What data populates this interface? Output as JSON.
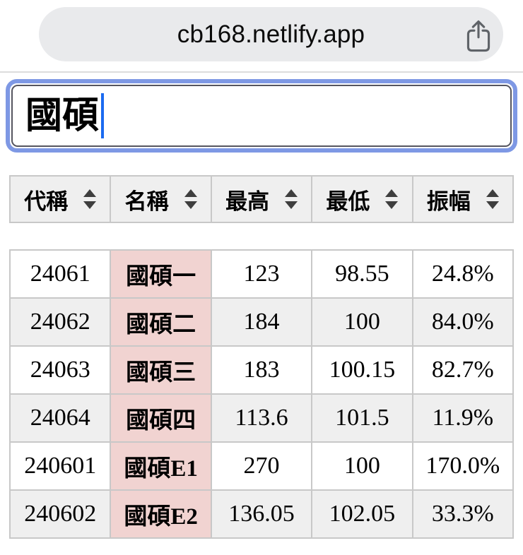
{
  "browser": {
    "url": "cb168.netlify.app",
    "share_icon": "share-icon"
  },
  "search": {
    "value": "國碩",
    "placeholder": ""
  },
  "table": {
    "columns": [
      {
        "label": "代稱",
        "sort_icon": "sort-arrows-icon"
      },
      {
        "label": "名稱",
        "sort_icon": "sort-arrows-icon"
      },
      {
        "label": "最高",
        "sort_icon": "sort-arrows-icon"
      },
      {
        "label": "最低",
        "sort_icon": "sort-arrows-icon"
      },
      {
        "label": "振幅",
        "sort_icon": "sort-arrows-icon"
      }
    ],
    "rows": [
      [
        "24061",
        "國碩一",
        "123",
        "98.55",
        "24.8%"
      ],
      [
        "24062",
        "國碩二",
        "184",
        "100",
        "84.0%"
      ],
      [
        "24063",
        "國碩三",
        "183",
        "100.15",
        "82.7%"
      ],
      [
        "24064",
        "國碩四",
        "113.6",
        "101.5",
        "11.9%"
      ],
      [
        "240601",
        "國碩E1",
        "270",
        "100",
        "170.0%"
      ],
      [
        "240602",
        "國碩E2",
        "136.05",
        "102.05",
        "33.3%"
      ]
    ]
  },
  "colors": {
    "pill_bg": "#e9eaec",
    "icon_gray": "#5f6368",
    "separator": "#dcdcdc",
    "focus_ring": "#7e98e4",
    "input_border": "#55555f",
    "caret": "#1b6af0",
    "header_bg": "#efefef",
    "row_alt_bg": "#efefef",
    "name_pink": "#f1d3d1",
    "table_border": "#c8c8c8"
  }
}
